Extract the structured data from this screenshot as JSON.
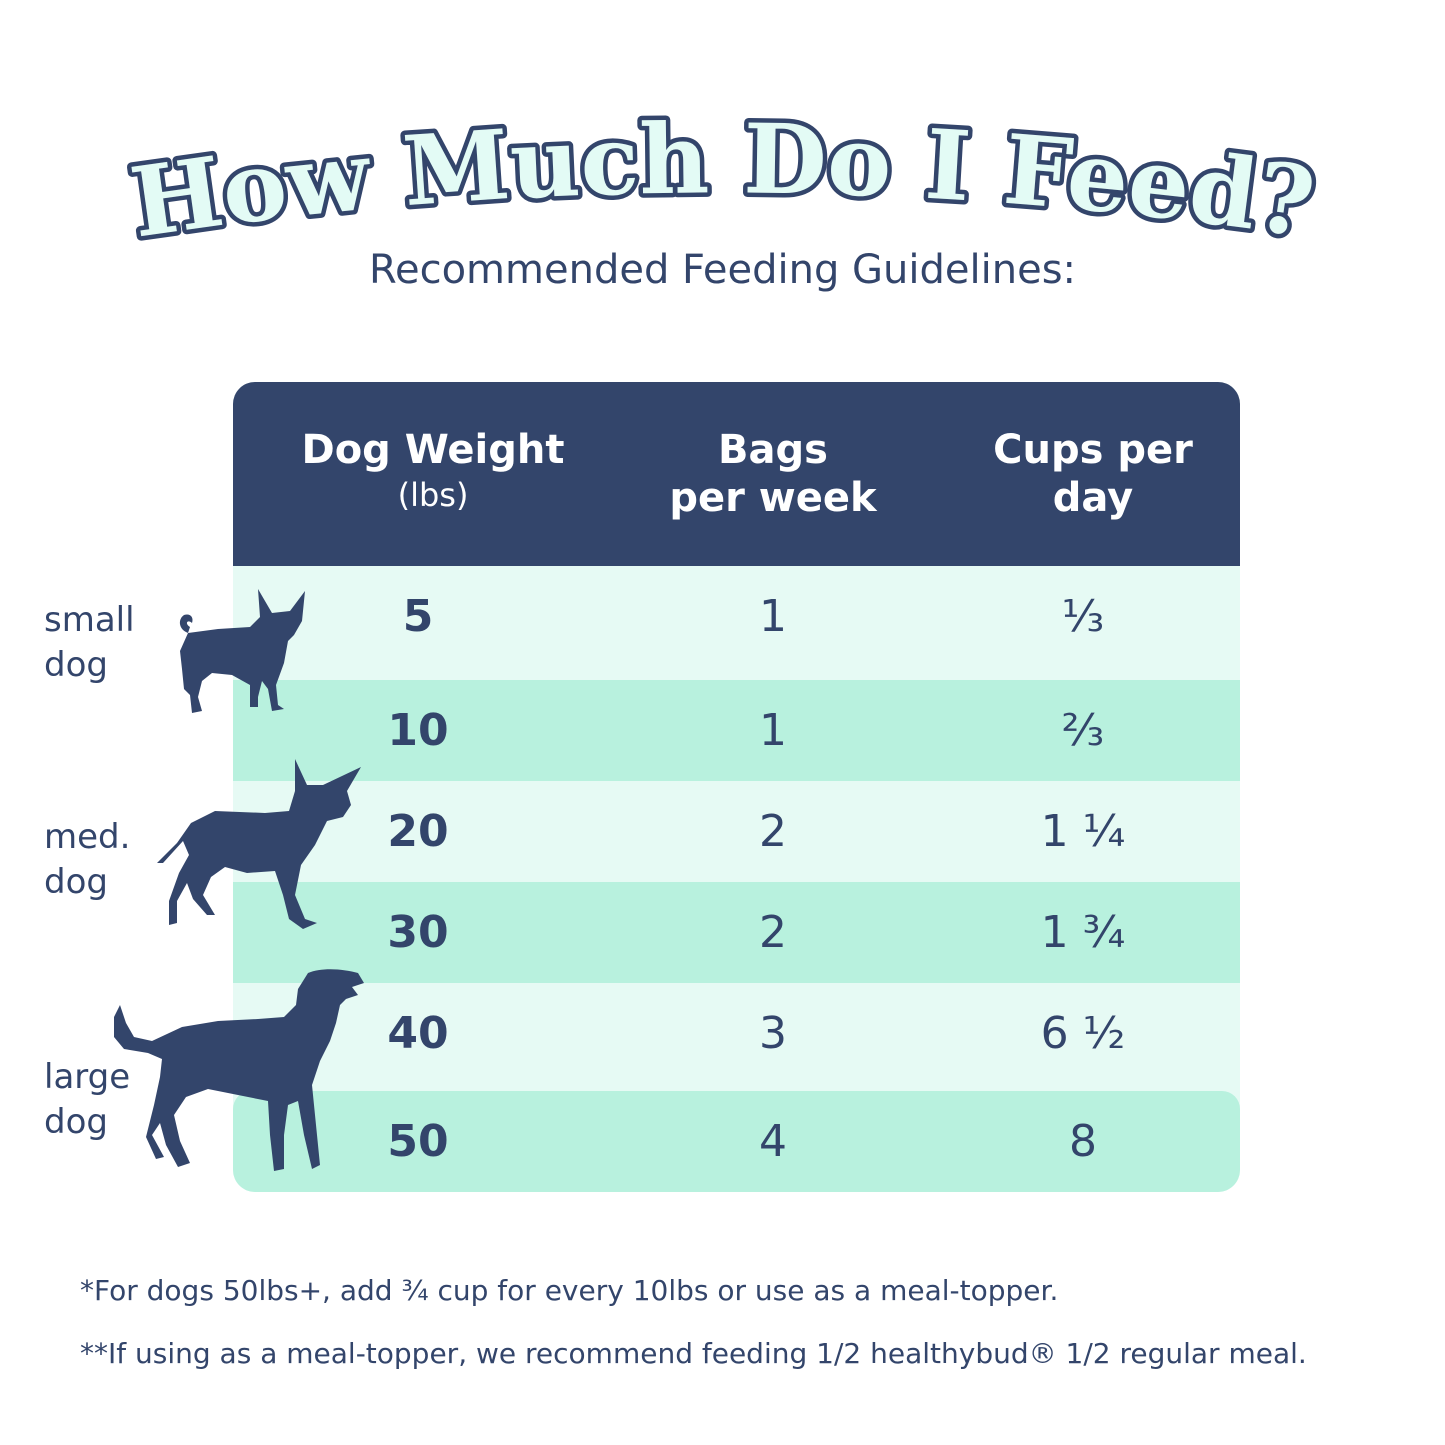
{
  "title": "How Much Do I Feed?",
  "subtitle": "Recommended Feeding Guidelines:",
  "table": {
    "headers": {
      "weight": "Dog Weight",
      "weight_unit": "(lbs)",
      "bags_line1": "Bags",
      "bags_line2": "per week",
      "cups_line1": "Cups per",
      "cups_line2": "day"
    },
    "rows": [
      {
        "weight": "5",
        "bags": "1",
        "cups": "⅓"
      },
      {
        "weight": "10",
        "bags": "1",
        "cups": "⅔"
      },
      {
        "weight": "20",
        "bags": "2",
        "cups": "1 ¼"
      },
      {
        "weight": "30",
        "bags": "2",
        "cups": "1 ¾"
      },
      {
        "weight": "40",
        "bags": "3",
        "cups": "6 ½"
      },
      {
        "weight": "50",
        "bags": "4",
        "cups": "8"
      }
    ]
  },
  "side_labels": {
    "small_1": "small",
    "small_2": "dog",
    "med_1": "med.",
    "med_2": "dog",
    "large_1": "large",
    "large_2": "dog"
  },
  "icons": [
    "small-dog-icon",
    "medium-dog-icon",
    "large-dog-icon"
  ],
  "colors": {
    "navy": "#33456b",
    "title_fill": "#e3fbf5",
    "row_light": "#e6faf4",
    "row_mint": "#b8f1de"
  },
  "footnotes": {
    "note1": "*For dogs 50lbs+, add ¾ cup for every 10lbs or use as a meal-topper.",
    "note2": "**If using as a meal-topper, we recommend feeding 1/2 healthybud® 1/2 regular meal."
  }
}
